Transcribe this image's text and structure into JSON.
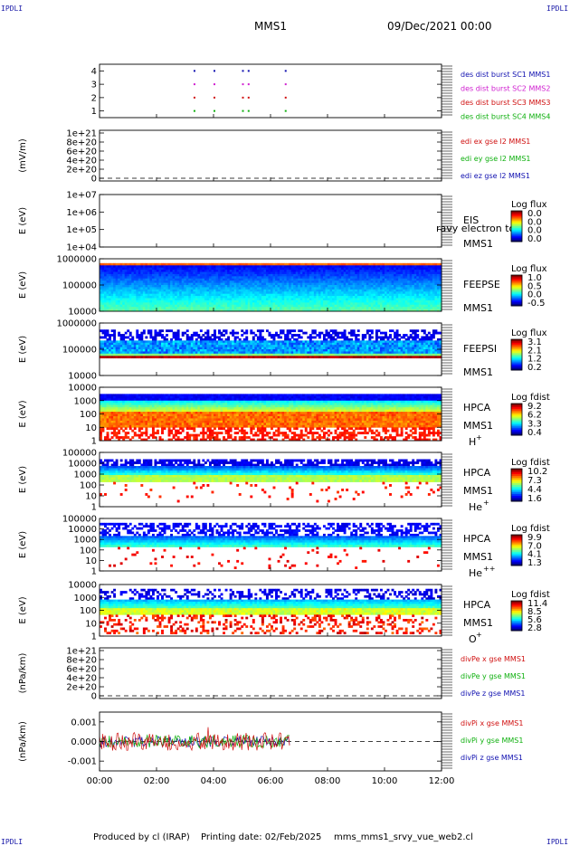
{
  "corner_label": "IPDLI",
  "header": {
    "spacecraft": "MMS1",
    "date": "09/Dec/2021 00:00"
  },
  "footer": {
    "produced": "Produced by cl (IRAP)",
    "printed": "Printing date: 02/Feb/2025",
    "file": "mms_mms1_srvy_vue_web2.cl"
  },
  "chart_data": {
    "type": "multi-panel",
    "x_ticks": [
      "00:00",
      "02:00",
      "04:00",
      "06:00",
      "08:00",
      "10:00",
      "12:00"
    ],
    "xlim_hours": [
      0,
      12
    ],
    "panels": [
      {
        "id": "burst",
        "type": "scatter",
        "ylabel": "",
        "yticks": [
          "4",
          "3",
          "2",
          "1"
        ],
        "ylim": [
          0.5,
          4.5
        ],
        "legend": [
          {
            "text": "des dist burst SC1 MMS1",
            "color": "#1010b0"
          },
          {
            "text": "des dist burst SC2 MMS2",
            "color": "#d020d0"
          },
          {
            "text": "des dist burst SC3 MMS3",
            "color": "#d01010"
          },
          {
            "text": "des dist burst SC4 MMS4",
            "color": "#10b010"
          }
        ],
        "bursts_hours": [
          3.3,
          4.0,
          5.0,
          5.2,
          6.5
        ]
      },
      {
        "id": "edi",
        "type": "line",
        "ylabel": "(mV/m)",
        "yticks": [
          "1e+21",
          "8e+20",
          "6e+20",
          "4e+20",
          "2e+20",
          "0"
        ],
        "dashed_zero": true,
        "legend": [
          {
            "text": "edi ex gse l2 MMS1",
            "color": "#d01010"
          },
          {
            "text": "edi ey gse l2 MMS1",
            "color": "#10b010"
          },
          {
            "text": "edi ez gse l2 MMS1",
            "color": "#1010b0"
          }
        ]
      },
      {
        "id": "eis",
        "type": "heatmap",
        "ylabel": "E (eV)",
        "yticks": [
          "1e+07",
          "1e+06",
          "1e+05",
          "1e+04"
        ],
        "names": [
          "EIS",
          "MMS1"
        ],
        "overlay_text": "ravy electron to",
        "colorbar": {
          "title": "Log flux",
          "ticks": [
            "0.0",
            "0.0",
            "0.0",
            "0.0"
          ]
        }
      },
      {
        "id": "feepse",
        "type": "heatmap",
        "ylabel": "E (eV)",
        "yticks": [
          "1000000",
          "100000",
          "10000"
        ],
        "names": [
          "FEEPSE",
          "MMS1"
        ],
        "colorbar": {
          "title": "Log flux",
          "ticks": [
            "1.0",
            "0.5",
            "0.0",
            "-0.5"
          ]
        }
      },
      {
        "id": "feepsi",
        "type": "heatmap",
        "ylabel": "E (eV)",
        "yticks": [
          "1000000",
          "100000",
          "10000"
        ],
        "names": [
          "FEEPSI",
          "MMS1"
        ],
        "colorbar": {
          "title": "Log flux",
          "ticks": [
            "3.1",
            "2.1",
            "1.2",
            "0.2"
          ]
        }
      },
      {
        "id": "hpca_h",
        "type": "heatmap",
        "ylabel": "E (eV)",
        "yticks": [
          "10000",
          "1000",
          "100",
          "10",
          "1"
        ],
        "names": [
          "HPCA",
          "MMS1"
        ],
        "species": "H",
        "species_sup": "+",
        "colorbar": {
          "title": "Log fdist",
          "ticks": [
            "9.2",
            "6.2",
            "3.3",
            "0.4"
          ]
        }
      },
      {
        "id": "hpca_he",
        "type": "heatmap",
        "ylabel": "E (eV)",
        "yticks": [
          "100000",
          "10000",
          "1000",
          "100",
          "10",
          "1"
        ],
        "names": [
          "HPCA",
          "MMS1"
        ],
        "species": "He",
        "species_sup": "+",
        "colorbar": {
          "title": "Log fdist",
          "ticks": [
            "10.2",
            "7.3",
            "4.4",
            "1.6"
          ]
        }
      },
      {
        "id": "hpca_hepp",
        "type": "heatmap",
        "ylabel": "E (eV)",
        "yticks": [
          "100000",
          "10000",
          "1000",
          "100",
          "10",
          "1"
        ],
        "names": [
          "HPCA",
          "MMS1"
        ],
        "species": "He",
        "species_sup": "++",
        "colorbar": {
          "title": "Log fdist",
          "ticks": [
            "9.9",
            "7.0",
            "4.1",
            "1.3"
          ]
        }
      },
      {
        "id": "hpca_o",
        "type": "heatmap",
        "ylabel": "E (eV)",
        "yticks": [
          "10000",
          "1000",
          "100",
          "10",
          "1"
        ],
        "names": [
          "HPCA",
          "MMS1"
        ],
        "species": "O",
        "species_sup": "+",
        "colorbar": {
          "title": "Log fdist",
          "ticks": [
            "11.4",
            "8.5",
            "5.6",
            "2.8"
          ]
        }
      },
      {
        "id": "divpe",
        "type": "line",
        "ylabel": "(nPa/km)",
        "yticks": [
          "1e+21",
          "8e+20",
          "6e+20",
          "4e+20",
          "2e+20",
          "0"
        ],
        "dashed_zero": true,
        "legend": [
          {
            "text": "divPe x gse MMS1",
            "color": "#d01010"
          },
          {
            "text": "divPe y gse MMS1",
            "color": "#10b010"
          },
          {
            "text": "divPe z gse MMS1",
            "color": "#1010b0"
          }
        ]
      },
      {
        "id": "divpi",
        "type": "line",
        "ylabel": "(nPa/km)",
        "yticks": [
          "0.001",
          "0.000",
          "-0.001"
        ],
        "ylim": [
          -0.0015,
          0.0015
        ],
        "dashed_zero": true,
        "data_end_hours": 6.7,
        "legend": [
          {
            "text": "divPi x gse MMS1",
            "color": "#d01010"
          },
          {
            "text": "divPi y gse MMS1",
            "color": "#10b010"
          },
          {
            "text": "divPi z gse MMS1",
            "color": "#1010b0"
          }
        ]
      }
    ]
  }
}
